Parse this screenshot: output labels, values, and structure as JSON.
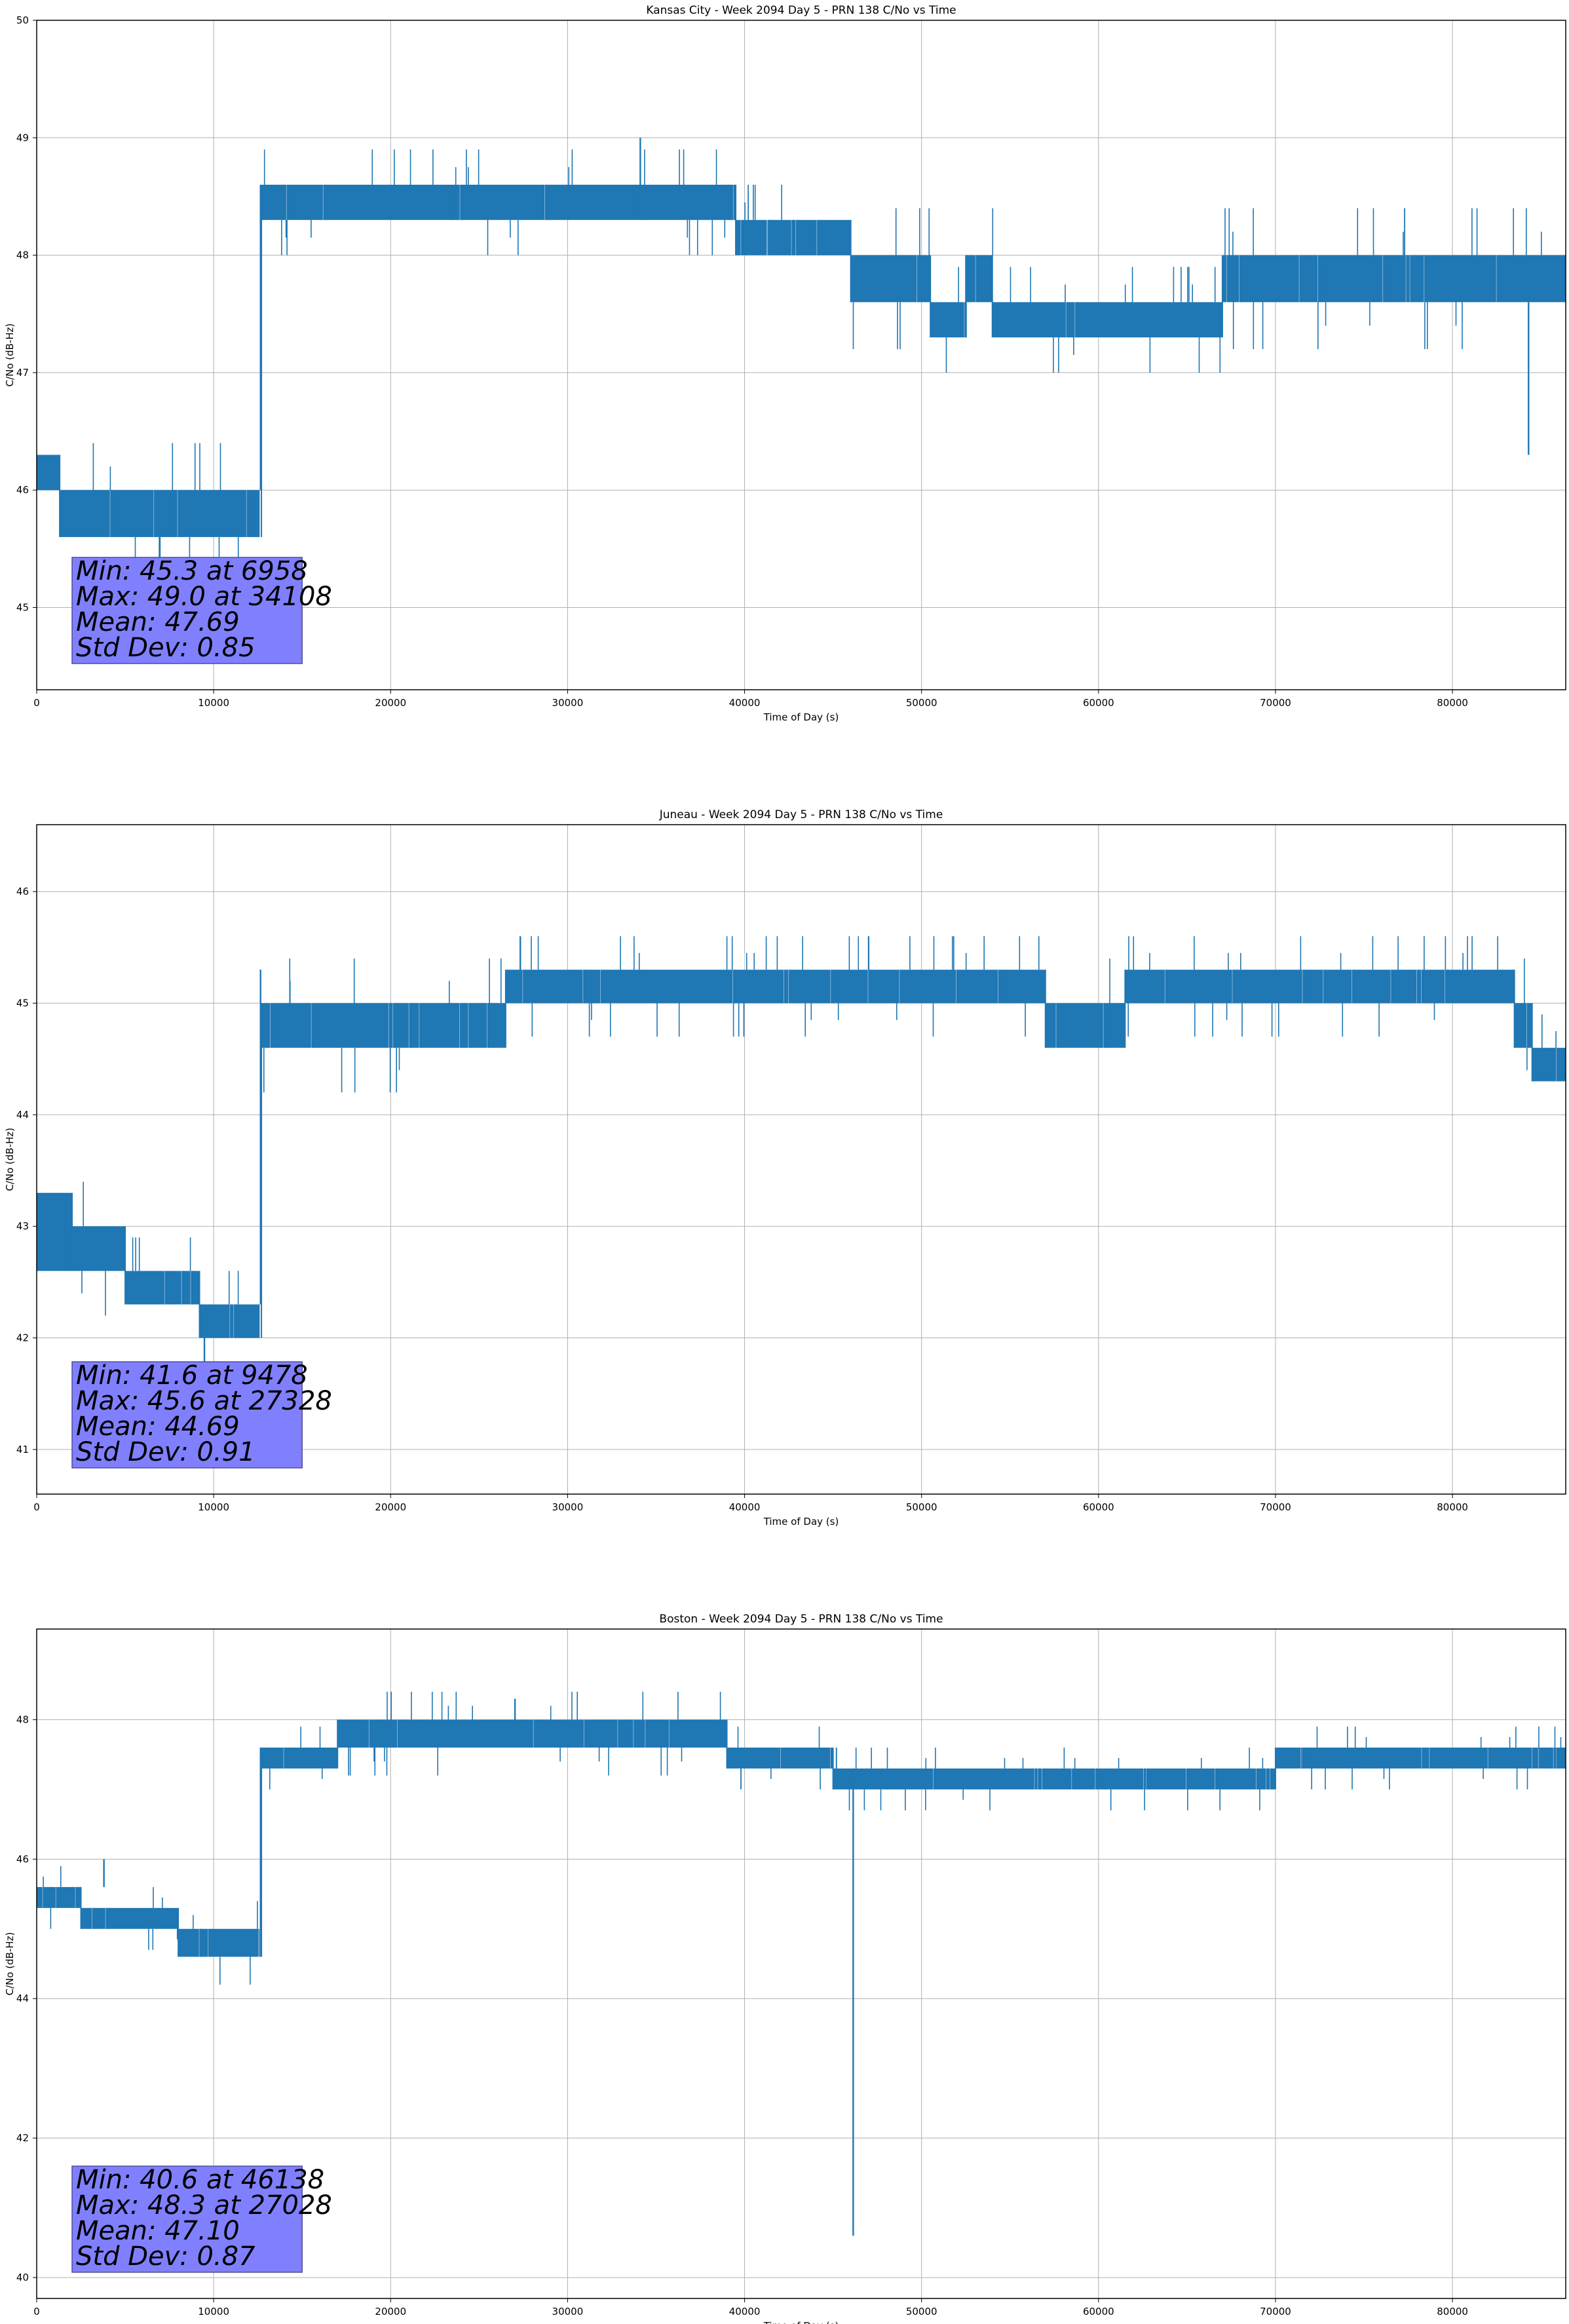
{
  "chart_data": [
    {
      "type": "line",
      "title": "Kansas City - Week 2094 Day 5 - PRN 138 C/No vs Time",
      "xlabel": "Time of Day (s)",
      "ylabel": "C/No (dB-Hz)",
      "xlim": [
        0,
        86400
      ],
      "ylim": [
        44.3,
        50.0
      ],
      "xticks": [
        0,
        10000,
        20000,
        30000,
        40000,
        50000,
        60000,
        70000,
        80000
      ],
      "yticks": [
        45,
        46,
        47,
        48,
        49,
        50
      ],
      "grid": true,
      "color": "#1f77b4",
      "stats": [
        "Min: 45.3 at 6958",
        "Max: 49.0 at 34108",
        "Mean: 47.69",
        "Std Dev: 0.85"
      ],
      "segments": [
        {
          "x": [
            0,
            1300
          ],
          "lo": 46.0,
          "hi": 46.3
        },
        {
          "x": [
            1300,
            12600
          ],
          "lo": 45.6,
          "hi": 46.0
        },
        {
          "x": [
            12700,
            23500
          ],
          "lo": 48.3,
          "hi": 48.6
        },
        {
          "x": [
            23500,
            39500
          ],
          "lo": 48.3,
          "hi": 48.6
        },
        {
          "x": [
            39500,
            46000
          ],
          "lo": 48.0,
          "hi": 48.3
        },
        {
          "x": [
            46000,
            50500
          ],
          "lo": 47.6,
          "hi": 48.0
        },
        {
          "x": [
            50500,
            52500
          ],
          "lo": 47.3,
          "hi": 47.6
        },
        {
          "x": [
            52500,
            54000
          ],
          "lo": 47.6,
          "hi": 48.0
        },
        {
          "x": [
            54000,
            67000
          ],
          "lo": 47.3,
          "hi": 47.6
        },
        {
          "x": [
            67000,
            86400
          ],
          "lo": 47.6,
          "hi": 48.0
        }
      ],
      "spikes": [
        {
          "x": 34108,
          "lo": 48.3,
          "hi": 49.0
        },
        {
          "x": 6958,
          "lo": 45.3,
          "hi": 45.6
        },
        {
          "x": 84300,
          "lo": 46.3,
          "hi": 47.6
        },
        {
          "x": 12650,
          "lo": 46.0,
          "hi": 48.6
        }
      ]
    },
    {
      "type": "line",
      "title": "Juneau - Week 2094 Day 5 - PRN 138 C/No vs Time",
      "xlabel": "Time of Day (s)",
      "ylabel": "C/No (dB-Hz)",
      "xlim": [
        0,
        86400
      ],
      "ylim": [
        40.6,
        46.6
      ],
      "xticks": [
        0,
        10000,
        20000,
        30000,
        40000,
        50000,
        60000,
        70000,
        80000
      ],
      "yticks": [
        41,
        42,
        43,
        44,
        45,
        46
      ],
      "grid": true,
      "color": "#1f77b4",
      "stats": [
        "Min: 41.6 at 9478",
        "Max: 45.6 at 27328",
        "Mean: 44.69",
        "Std Dev: 0.91"
      ],
      "segments": [
        {
          "x": [
            0,
            2000
          ],
          "lo": 42.6,
          "hi": 43.3
        },
        {
          "x": [
            2000,
            5000
          ],
          "lo": 42.6,
          "hi": 43.0
        },
        {
          "x": [
            5000,
            9200
          ],
          "lo": 42.3,
          "hi": 42.6
        },
        {
          "x": [
            9200,
            12600
          ],
          "lo": 42.0,
          "hi": 42.3
        },
        {
          "x": [
            12700,
            26500
          ],
          "lo": 44.6,
          "hi": 45.0
        },
        {
          "x": [
            26500,
            57000
          ],
          "lo": 45.0,
          "hi": 45.3
        },
        {
          "x": [
            57000,
            61500
          ],
          "lo": 44.6,
          "hi": 45.0
        },
        {
          "x": [
            61500,
            83500
          ],
          "lo": 45.0,
          "hi": 45.3
        },
        {
          "x": [
            83500,
            84500
          ],
          "lo": 44.6,
          "hi": 45.0
        },
        {
          "x": [
            84500,
            86400
          ],
          "lo": 44.3,
          "hi": 44.6
        }
      ],
      "spikes": [
        {
          "x": 27328,
          "lo": 45.3,
          "hi": 45.6
        },
        {
          "x": 9478,
          "lo": 41.6,
          "hi": 42.0
        },
        {
          "x": 12650,
          "lo": 42.3,
          "hi": 45.3
        }
      ]
    },
    {
      "type": "line",
      "title": "Boston - Week 2094 Day 5 - PRN 138 C/No vs Time",
      "xlabel": "Time of Day (s)",
      "ylabel": "C/No (dB-Hz)",
      "xlim": [
        0,
        86400
      ],
      "ylim": [
        39.7,
        49.3
      ],
      "xticks": [
        0,
        10000,
        20000,
        30000,
        40000,
        50000,
        60000,
        70000,
        80000
      ],
      "yticks": [
        40,
        42,
        44,
        46,
        48
      ],
      "grid": true,
      "color": "#1f77b4",
      "stats": [
        "Min: 40.6 at 46138",
        "Max: 48.3 at 27028",
        "Mean: 47.10",
        "Std Dev: 0.87"
      ],
      "segments": [
        {
          "x": [
            0,
            2500
          ],
          "lo": 45.3,
          "hi": 45.6
        },
        {
          "x": [
            2500,
            8000
          ],
          "lo": 45.0,
          "hi": 45.3
        },
        {
          "x": [
            8000,
            12600
          ],
          "lo": 44.6,
          "hi": 45.0
        },
        {
          "x": [
            12700,
            17000
          ],
          "lo": 47.3,
          "hi": 47.6
        },
        {
          "x": [
            17000,
            39000
          ],
          "lo": 47.6,
          "hi": 48.0
        },
        {
          "x": [
            39000,
            45000
          ],
          "lo": 47.3,
          "hi": 47.6
        },
        {
          "x": [
            45000,
            70000
          ],
          "lo": 47.0,
          "hi": 47.3
        },
        {
          "x": [
            70000,
            86400
          ],
          "lo": 47.3,
          "hi": 47.6
        }
      ],
      "spikes": [
        {
          "x": 27028,
          "lo": 48.0,
          "hi": 48.3
        },
        {
          "x": 46138,
          "lo": 40.6,
          "hi": 47.3
        },
        {
          "x": 3800,
          "lo": 45.6,
          "hi": 46.0
        },
        {
          "x": 12650,
          "lo": 45.0,
          "hi": 47.6
        }
      ]
    }
  ]
}
